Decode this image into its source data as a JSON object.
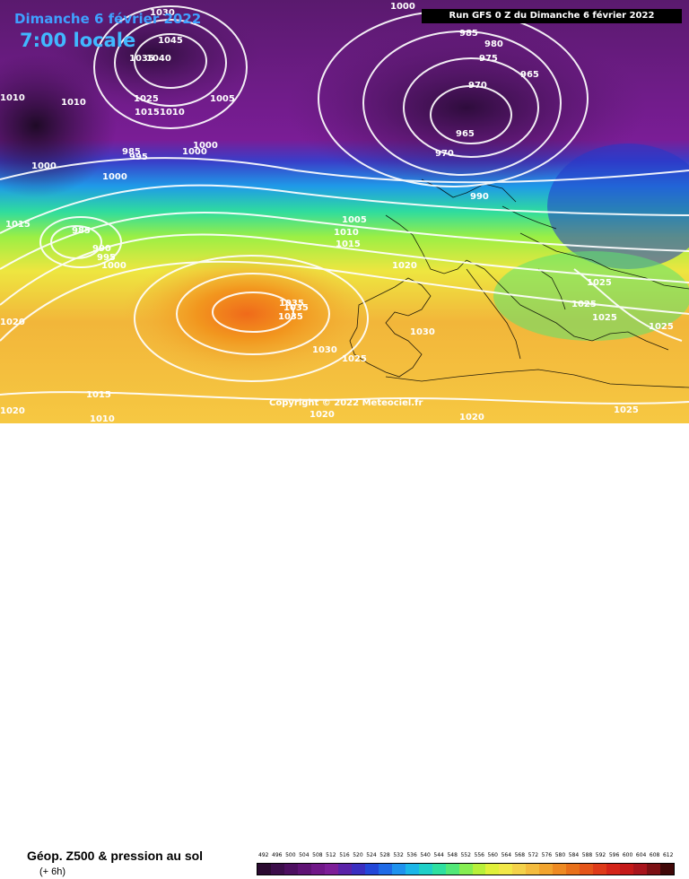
{
  "header": {
    "date": "Dimanche 6 février 2022",
    "time": "7:00 locale",
    "run": "Run GFS 0 Z du Dimanche 6 février 2022"
  },
  "map": {
    "copyright": "Copyright © 2022 Meteociel.fr",
    "pressure_labels": [
      "1000",
      "995",
      "985",
      "980",
      "975",
      "965",
      "970",
      "965",
      "970",
      "1030",
      "1045",
      "1035",
      "1040",
      "1025",
      "1015",
      "1010",
      "1005",
      "1010",
      "1000",
      "1000",
      "985",
      "995",
      "1000",
      "1015",
      "990",
      "1005",
      "1010",
      "1015",
      "985",
      "990",
      "995",
      "1000",
      "1020",
      "1035",
      "1035",
      "1035",
      "1030",
      "1025",
      "1030",
      "1025",
      "1025",
      "1025",
      "1025",
      "1015",
      "1010",
      "1020",
      "1020",
      "1020",
      "1025"
    ]
  },
  "footer": {
    "title": "Géop. Z500 & pression au sol",
    "subtitle": "(+ 6h)",
    "scale_labels": [
      "492",
      "496",
      "500",
      "504",
      "508",
      "512",
      "516",
      "520",
      "524",
      "528",
      "532",
      "536",
      "540",
      "544",
      "548",
      "552",
      "556",
      "560",
      "564",
      "568",
      "572",
      "576",
      "580",
      "584",
      "588",
      "592",
      "596",
      "600",
      "604",
      "608",
      "612"
    ],
    "scale_colors": [
      "#2a0a30",
      "#3c0d4a",
      "#4d0f60",
      "#5f1274",
      "#701788",
      "#7d1e98",
      "#5a22a8",
      "#3a2ec0",
      "#2347d8",
      "#1f6ae6",
      "#1f92ee",
      "#1cb6e8",
      "#1fd0c8",
      "#2ee0a0",
      "#52e878",
      "#86ee52",
      "#b8f03a",
      "#e0f03a",
      "#f2e848",
      "#f4d24a",
      "#f4bc3e",
      "#f2a42e",
      "#ee8a22",
      "#e8701a",
      "#e45418",
      "#de3a18",
      "#d42418",
      "#c41818",
      "#a8141c",
      "#7c1014",
      "#400808"
    ]
  }
}
